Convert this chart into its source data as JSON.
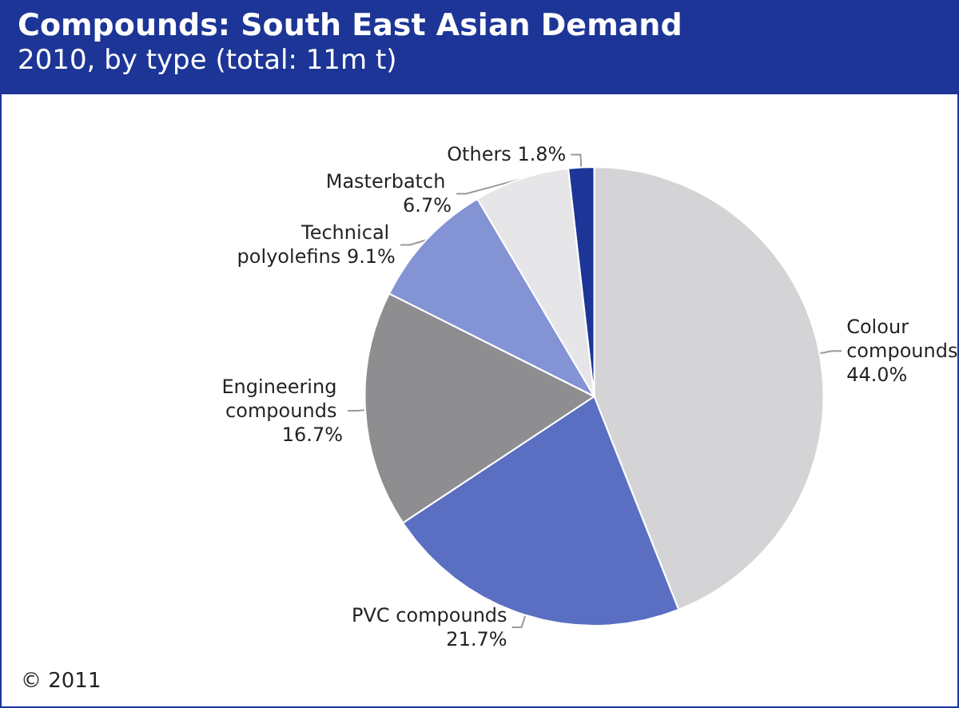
{
  "chart_data": {
    "type": "pie",
    "title": "Compounds: South East Asian Demand",
    "subtitle": "2010, by type (total: 11m t)",
    "categories": [
      "Colour compounds",
      "PVC compounds",
      "Engineering compounds",
      "Technical polyolefins",
      "Masterbatch",
      "Others"
    ],
    "values": [
      44.0,
      21.7,
      16.7,
      9.1,
      6.7,
      1.8
    ],
    "value_labels": [
      "44.0%",
      "21.7%",
      "16.7%",
      "9.1%",
      "6.7%",
      "1.8%"
    ],
    "colors": [
      "#d4d4d6",
      "#5b6fc2",
      "#8e8e90",
      "#8393d4",
      "#e6e6e8",
      "#1c3596"
    ],
    "legend": false,
    "annotations": [
      "© 2011"
    ]
  }
}
